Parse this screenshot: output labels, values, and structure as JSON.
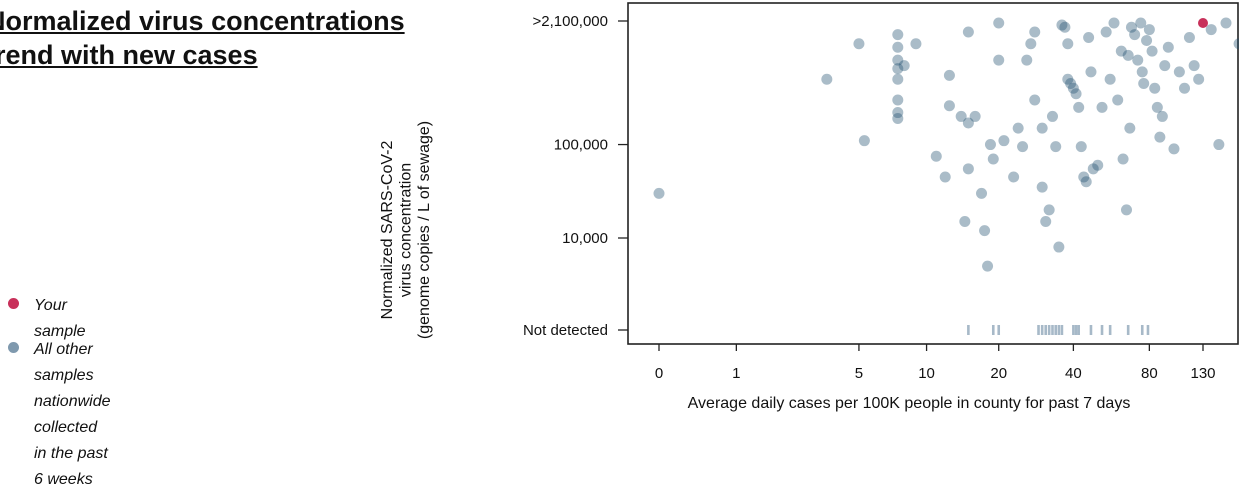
{
  "title": {
    "line1": "Normalized virus concentrations",
    "line2": "trend with new cases"
  },
  "legend": {
    "items": [
      {
        "label_lines": [
          "Your sample"
        ],
        "color": "#c8305a"
      },
      {
        "label_lines": [
          "All other samples nationwide",
          "collected in the past 6 weeks"
        ],
        "color": "#7f99ae"
      }
    ]
  },
  "colors": {
    "your_sample": "#c8305a",
    "other_samples": "#1f4e6e"
  },
  "chart_data": {
    "type": "scatter",
    "xlabel": "Average daily cases per 100K people in county for past 7 days",
    "ylabel_lines": [
      "Normalized SARS-CoV-2",
      "virus concentration",
      "(genome copies / L of sewage)"
    ],
    "x_scale": "log1p",
    "y_scale": "log",
    "x_ticks": [
      0,
      1,
      5,
      10,
      20,
      40,
      80,
      130
    ],
    "x_tick_labels": [
      "0",
      "1",
      "5",
      "10",
      "20",
      "40",
      "80",
      "130"
    ],
    "y_ticks": [
      10000,
      100000,
      2100000
    ],
    "y_tick_labels": [
      "10,000",
      "100,000",
      ">2,100,000"
    ],
    "not_detected_label": "Not detected",
    "xlim": [
      -0.3,
      240
    ],
    "ylim": [
      1000,
      2300000
    ],
    "your_sample": {
      "x": 130,
      "y": 2000000
    },
    "other_samples": [
      [
        0,
        30000
      ],
      [
        3.5,
        500000
      ],
      [
        5,
        1200000
      ],
      [
        5.3,
        110000
      ],
      [
        7.5,
        1500000
      ],
      [
        7.5,
        1100000
      ],
      [
        7.5,
        800000
      ],
      [
        7.5,
        650000
      ],
      [
        7.5,
        500000
      ],
      [
        7.5,
        300000
      ],
      [
        7.5,
        220000
      ],
      [
        7.5,
        190000
      ],
      [
        8,
        700000
      ],
      [
        9,
        1200000
      ],
      [
        11,
        75000
      ],
      [
        12,
        45000
      ],
      [
        12.5,
        550000
      ],
      [
        12.5,
        260000
      ],
      [
        14,
        200000
      ],
      [
        14.5,
        15000
      ],
      [
        15,
        55000
      ],
      [
        15,
        170000
      ],
      [
        15,
        1600000
      ],
      [
        16,
        200000
      ],
      [
        17,
        30000
      ],
      [
        17.5,
        12000
      ],
      [
        18,
        5000
      ],
      [
        18.5,
        100000
      ],
      [
        19,
        70000
      ],
      [
        20,
        800000
      ],
      [
        20,
        2000000
      ],
      [
        21,
        110000
      ],
      [
        23,
        45000
      ],
      [
        24,
        150000
      ],
      [
        25,
        95000
      ],
      [
        26,
        800000
      ],
      [
        27,
        1200000
      ],
      [
        28,
        1600000
      ],
      [
        28,
        300000
      ],
      [
        30,
        150000
      ],
      [
        30,
        35000
      ],
      [
        31,
        15000
      ],
      [
        32,
        20000
      ],
      [
        33,
        200000
      ],
      [
        34,
        95000
      ],
      [
        35,
        8000
      ],
      [
        36,
        1900000
      ],
      [
        37,
        1800000
      ],
      [
        38,
        1200000
      ],
      [
        38,
        500000
      ],
      [
        39,
        450000
      ],
      [
        40,
        400000
      ],
      [
        41,
        350000
      ],
      [
        42,
        250000
      ],
      [
        43,
        95000
      ],
      [
        44,
        45000
      ],
      [
        45,
        40000
      ],
      [
        46,
        1400000
      ],
      [
        47,
        600000
      ],
      [
        48,
        55000
      ],
      [
        50,
        60000
      ],
      [
        52,
        250000
      ],
      [
        54,
        1600000
      ],
      [
        56,
        500000
      ],
      [
        58,
        2000000
      ],
      [
        60,
        300000
      ],
      [
        62,
        1000000
      ],
      [
        63,
        70000
      ],
      [
        65,
        20000
      ],
      [
        66,
        900000
      ],
      [
        67,
        150000
      ],
      [
        68,
        1800000
      ],
      [
        70,
        1500000
      ],
      [
        72,
        800000
      ],
      [
        74,
        2000000
      ],
      [
        75,
        600000
      ],
      [
        76,
        450000
      ],
      [
        78,
        1300000
      ],
      [
        80,
        1700000
      ],
      [
        82,
        1000000
      ],
      [
        84,
        400000
      ],
      [
        86,
        250000
      ],
      [
        88,
        120000
      ],
      [
        90,
        200000
      ],
      [
        92,
        700000
      ],
      [
        95,
        1100000
      ],
      [
        100,
        90000
      ],
      [
        105,
        600000
      ],
      [
        110,
        400000
      ],
      [
        115,
        1400000
      ],
      [
        120,
        700000
      ],
      [
        125,
        500000
      ],
      [
        140,
        1700000
      ],
      [
        150,
        100000
      ],
      [
        160,
        2000000
      ],
      [
        180,
        1200000
      ]
    ],
    "not_detected_x": [
      15,
      19,
      20,
      29,
      30,
      31,
      32,
      33,
      34,
      35,
      36,
      40,
      41,
      42,
      47,
      52,
      56,
      66,
      75,
      79
    ],
    "grid": false
  }
}
